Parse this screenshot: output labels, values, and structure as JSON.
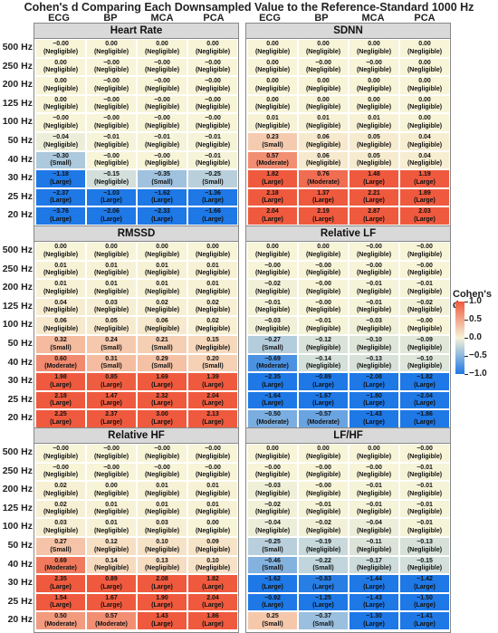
{
  "chart_data": {
    "type": "heatmap",
    "title": "Cohen's d Comparing Each Downsampled Value to the Reference-Standard 1000 Hz",
    "columns": [
      "ECG",
      "BP",
      "MCA",
      "PCA"
    ],
    "rows": [
      "500 Hz",
      "250 Hz",
      "200 Hz",
      "125 Hz",
      "100 Hz",
      "50 Hz",
      "40 Hz",
      "30 Hz",
      "25 Hz",
      "20 Hz"
    ],
    "colorbar": {
      "label": "Cohen's d",
      "ticks": [
        "1.0",
        "0.5",
        "0.0",
        "−0.5",
        "−1.0"
      ],
      "range": [
        -1.0,
        1.0
      ],
      "colors": {
        "negative": "#1e78e6",
        "neutral": "#f7f4d8",
        "positive": "#ef5a3e"
      }
    },
    "panels": [
      {
        "name": "Heart Rate",
        "values": [
          [
            "−0.00",
            "0.00",
            "0.00",
            "0.00"
          ],
          [
            "0.00",
            "−0.00",
            "−0.00",
            "−0.00"
          ],
          [
            "0.00",
            "−0.00",
            "−0.00",
            "−0.00"
          ],
          [
            "0.00",
            "−0.00",
            "−0.00",
            "−0.00"
          ],
          [
            "−0.00",
            "−0.00",
            "−0.00",
            "−0.00"
          ],
          [
            "−0.04",
            "−0.01",
            "−0.01",
            "−0.01"
          ],
          [
            "−0.30",
            "−0.00",
            "−0.00",
            "−0.01"
          ],
          [
            "−1.18",
            "−0.15",
            "−0.35",
            "−0.25"
          ],
          [
            "−2.37",
            "−1.03",
            "−1.62",
            "−1.36"
          ],
          [
            "−3.76",
            "−2.06",
            "−2.33",
            "−1.66"
          ]
        ],
        "labels": [
          [
            "(Negligible)",
            "(Negligible)",
            "(Negligible)",
            "(Negligible)"
          ],
          [
            "(Negligible)",
            "(Negligible)",
            "(Negligible)",
            "(Negligible)"
          ],
          [
            "(Negligible)",
            "(Negligible)",
            "(Negligible)",
            "(Negligible)"
          ],
          [
            "(Negligible)",
            "(Negligible)",
            "(Negligible)",
            "(Negligible)"
          ],
          [
            "(Negligible)",
            "(Negligible)",
            "(Negligible)",
            "(Negligible)"
          ],
          [
            "(Negligible)",
            "(Negligible)",
            "(Negligible)",
            "(Negligible)"
          ],
          [
            "(Small)",
            "(Negligible)",
            "(Negligible)",
            "(Negligible)"
          ],
          [
            "(Large)",
            "(Negligible)",
            "(Small)",
            "(Small)"
          ],
          [
            "(Large)",
            "(Large)",
            "(Large)",
            "(Large)"
          ],
          [
            "(Large)",
            "(Large)",
            "(Large)",
            "(Large)"
          ]
        ]
      },
      {
        "name": "SDNN",
        "values": [
          [
            "0.00",
            "0.00",
            "0.00",
            "0.00"
          ],
          [
            "0.00",
            "−0.00",
            "−0.00",
            "0.00"
          ],
          [
            "0.00",
            "0.00",
            "0.00",
            "0.00"
          ],
          [
            "0.00",
            "0.00",
            "0.00",
            "0.00"
          ],
          [
            "0.01",
            "0.01",
            "0.01",
            "0.00"
          ],
          [
            "0.23",
            "0.06",
            "0.05",
            "0.04"
          ],
          [
            "0.57",
            "0.06",
            "0.05",
            "0.04"
          ],
          [
            "1.82",
            "0.76",
            "1.48",
            "1.19"
          ],
          [
            "2.18",
            "1.37",
            "2.21",
            "1.89"
          ],
          [
            "2.04",
            "2.19",
            "2.87",
            "2.03"
          ]
        ],
        "labels": [
          [
            "(Negligible)",
            "(Negligible)",
            "(Negligible)",
            "(Negligible)"
          ],
          [
            "(Negligible)",
            "(Negligible)",
            "(Negligible)",
            "(Negligible)"
          ],
          [
            "(Negligible)",
            "(Negligible)",
            "(Negligible)",
            "(Negligible)"
          ],
          [
            "(Negligible)",
            "(Negligible)",
            "(Negligible)",
            "(Negligible)"
          ],
          [
            "(Negligible)",
            "(Negligible)",
            "(Negligible)",
            "(Negligible)"
          ],
          [
            "(Small)",
            "(Negligible)",
            "(Negligible)",
            "(Negligible)"
          ],
          [
            "(Moderate)",
            "(Negligible)",
            "(Negligible)",
            "(Negligible)"
          ],
          [
            "(Large)",
            "(Moderate)",
            "(Large)",
            "(Large)"
          ],
          [
            "(Large)",
            "(Large)",
            "(Large)",
            "(Large)"
          ],
          [
            "(Large)",
            "(Large)",
            "(Large)",
            "(Large)"
          ]
        ]
      },
      {
        "name": "RMSSD",
        "values": [
          [
            "0.00",
            "0.00",
            "0.00",
            "0.00"
          ],
          [
            "0.01",
            "0.01",
            "0.01",
            "0.01"
          ],
          [
            "0.01",
            "0.01",
            "0.01",
            "0.01"
          ],
          [
            "0.04",
            "0.03",
            "0.02",
            "0.02"
          ],
          [
            "0.06",
            "0.05",
            "0.06",
            "0.02"
          ],
          [
            "0.32",
            "0.24",
            "0.21",
            "0.15"
          ],
          [
            "0.60",
            "0.31",
            "0.29",
            "0.20"
          ],
          [
            "1.98",
            "0.85",
            "1.69",
            "1.39"
          ],
          [
            "2.18",
            "1.47",
            "2.32",
            "2.04"
          ],
          [
            "2.25",
            "2.37",
            "3.00",
            "2.13"
          ]
        ],
        "labels": [
          [
            "(Negligible)",
            "(Negligible)",
            "(Negligible)",
            "(Negligible)"
          ],
          [
            "(Negligible)",
            "(Negligible)",
            "(Negligible)",
            "(Negligible)"
          ],
          [
            "(Negligible)",
            "(Negligible)",
            "(Negligible)",
            "(Negligible)"
          ],
          [
            "(Negligible)",
            "(Negligible)",
            "(Negligible)",
            "(Negligible)"
          ],
          [
            "(Negligible)",
            "(Negligible)",
            "(Negligible)",
            "(Negligible)"
          ],
          [
            "(Small)",
            "(Small)",
            "(Small)",
            "(Negligible)"
          ],
          [
            "(Moderate)",
            "(Small)",
            "(Small)",
            "(Small)"
          ],
          [
            "(Large)",
            "(Large)",
            "(Large)",
            "(Large)"
          ],
          [
            "(Large)",
            "(Large)",
            "(Large)",
            "(Large)"
          ],
          [
            "(Large)",
            "(Large)",
            "(Large)",
            "(Large)"
          ]
        ]
      },
      {
        "name": "Relative LF",
        "values": [
          [
            "0.00",
            "0.00",
            "−0.00",
            "−0.00"
          ],
          [
            "−0.00",
            "−0.00",
            "−0.00",
            "−0.00"
          ],
          [
            "−0.02",
            "−0.00",
            "−0.01",
            "−0.01"
          ],
          [
            "−0.01",
            "−0.00",
            "−0.01",
            "−0.02"
          ],
          [
            "−0.03",
            "−0.01",
            "−0.03",
            "−0.00"
          ],
          [
            "−0.27",
            "−0.12",
            "−0.10",
            "−0.09"
          ],
          [
            "−0.69",
            "−0.14",
            "−0.13",
            "−0.10"
          ],
          [
            "−2.35",
            "−0.89",
            "−2.08",
            "−1.82"
          ],
          [
            "−1.64",
            "−1.67",
            "−1.80",
            "−2.04"
          ],
          [
            "−0.50",
            "−0.57",
            "−1.43",
            "−1.86"
          ]
        ],
        "labels": [
          [
            "(Negligible)",
            "(Negligible)",
            "(Negligible)",
            "(Negligible)"
          ],
          [
            "(Negligible)",
            "(Negligible)",
            "(Negligible)",
            "(Negligible)"
          ],
          [
            "(Negligible)",
            "(Negligible)",
            "(Negligible)",
            "(Negligible)"
          ],
          [
            "(Negligible)",
            "(Negligible)",
            "(Negligible)",
            "(Negligible)"
          ],
          [
            "(Negligible)",
            "(Negligible)",
            "(Negligible)",
            "(Negligible)"
          ],
          [
            "(Small)",
            "(Negligible)",
            "(Negligible)",
            "(Negligible)"
          ],
          [
            "(Moderate)",
            "(Negligible)",
            "(Negligible)",
            "(Negligible)"
          ],
          [
            "(Large)",
            "(Large)",
            "(Large)",
            "(Large)"
          ],
          [
            "(Large)",
            "(Large)",
            "(Large)",
            "(Large)"
          ],
          [
            "(Moderate)",
            "(Moderate)",
            "(Large)",
            "(Large)"
          ]
        ]
      },
      {
        "name": "Relative HF",
        "values": [
          [
            "−0.00",
            "−0.00",
            "−0.00",
            "−0.00"
          ],
          [
            "−0.00",
            "−0.00",
            "−0.00",
            "−0.00"
          ],
          [
            "0.02",
            "0.00",
            "0.01",
            "0.01"
          ],
          [
            "0.02",
            "0.01",
            "0.01",
            "0.01"
          ],
          [
            "0.03",
            "0.01",
            "0.03",
            "0.00"
          ],
          [
            "0.27",
            "0.12",
            "0.10",
            "0.09"
          ],
          [
            "0.69",
            "0.14",
            "0.13",
            "0.10"
          ],
          [
            "2.35",
            "0.89",
            "2.08",
            "1.82"
          ],
          [
            "1.54",
            "1.67",
            "1.90",
            "2.04"
          ],
          [
            "0.50",
            "0.57",
            "1.43",
            "1.86"
          ]
        ],
        "labels": [
          [
            "(Negligible)",
            "(Negligible)",
            "(Negligible)",
            "(Negligible)"
          ],
          [
            "(Negligible)",
            "(Negligible)",
            "(Negligible)",
            "(Negligible)"
          ],
          [
            "(Negligible)",
            "(Negligible)",
            "(Negligible)",
            "(Negligible)"
          ],
          [
            "(Negligible)",
            "(Negligible)",
            "(Negligible)",
            "(Negligible)"
          ],
          [
            "(Negligible)",
            "(Negligible)",
            "(Negligible)",
            "(Negligible)"
          ],
          [
            "(Small)",
            "(Negligible)",
            "(Negligible)",
            "(Negligible)"
          ],
          [
            "(Moderate)",
            "(Negligible)",
            "(Negligible)",
            "(Negligible)"
          ],
          [
            "(Large)",
            "(Large)",
            "(Large)",
            "(Large)"
          ],
          [
            "(Large)",
            "(Large)",
            "(Large)",
            "(Large)"
          ],
          [
            "(Moderate)",
            "(Moderate)",
            "(Large)",
            "(Large)"
          ]
        ]
      },
      {
        "name": "LF/HF",
        "values": [
          [
            "0.00",
            "0.00",
            "0.00",
            "−0.00"
          ],
          [
            "−0.00",
            "−0.00",
            "−0.00",
            "−0.01"
          ],
          [
            "−0.03",
            "−0.00",
            "−0.01",
            "−0.01"
          ],
          [
            "−0.02",
            "−0.01",
            "−0.01",
            "−0.01"
          ],
          [
            "−0.04",
            "−0.02",
            "−0.04",
            "−0.01"
          ],
          [
            "−0.25",
            "−0.19",
            "−0.11",
            "−0.13"
          ],
          [
            "−0.46",
            "−0.22",
            "−0.17",
            "−0.15"
          ],
          [
            "−1.62",
            "−0.83",
            "−1.44",
            "−1.42"
          ],
          [
            "−0.92",
            "−1.25",
            "−1.43",
            "−1.50"
          ],
          [
            "0.25",
            "−0.37",
            "−1.30",
            "−1.41"
          ]
        ],
        "labels": [
          [
            "(Negligible)",
            "(Negligible)",
            "(Negligible)",
            "(Negligible)"
          ],
          [
            "(Negligible)",
            "(Negligible)",
            "(Negligible)",
            "(Negligible)"
          ],
          [
            "(Negligible)",
            "(Negligible)",
            "(Negligible)",
            "(Negligible)"
          ],
          [
            "(Negligible)",
            "(Negligible)",
            "(Negligible)",
            "(Negligible)"
          ],
          [
            "(Negligible)",
            "(Negligible)",
            "(Negligible)",
            "(Negligible)"
          ],
          [
            "(Small)",
            "(Negligible)",
            "(Negligible)",
            "(Negligible)"
          ],
          [
            "(Small)",
            "(Small)",
            "(Negligible)",
            "(Negligible)"
          ],
          [
            "(Large)",
            "(Large)",
            "(Large)",
            "(Large)"
          ],
          [
            "(Large)",
            "(Large)",
            "(Large)",
            "(Large)"
          ],
          [
            "(Small)",
            "(Small)",
            "(Large)",
            "(Large)"
          ]
        ]
      }
    ]
  }
}
